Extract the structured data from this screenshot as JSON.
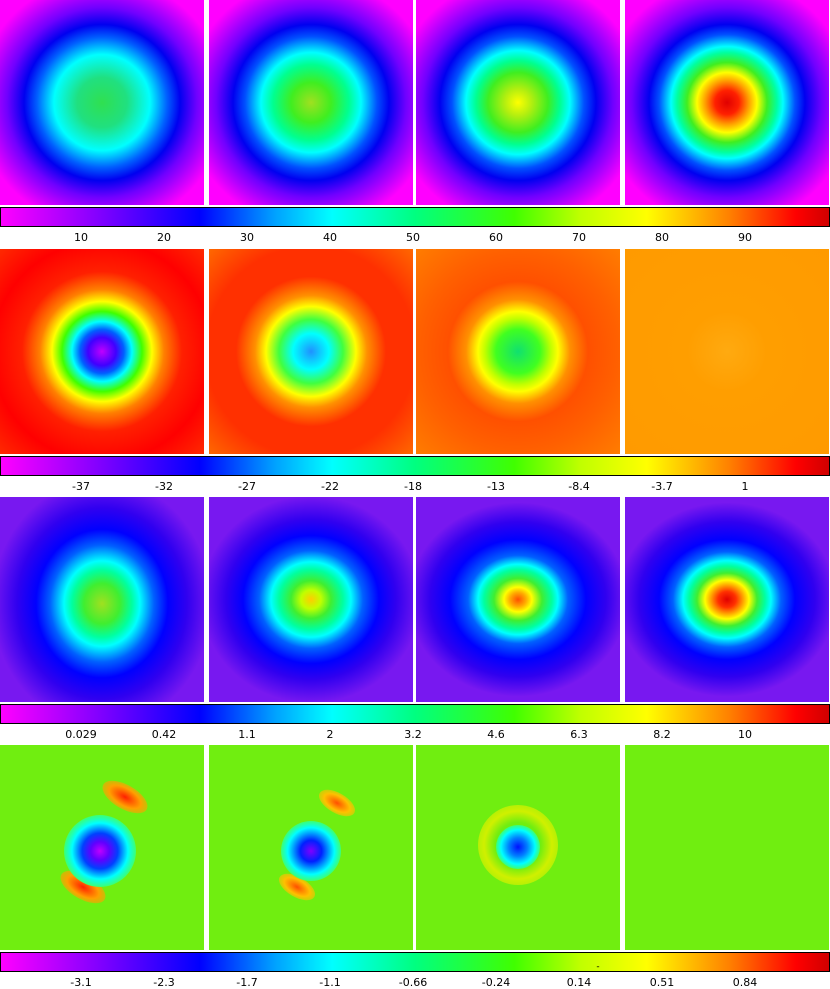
{
  "colorbars": [
    {
      "ticks": [
        "10",
        "20",
        "30",
        "40",
        "50",
        "60",
        "70",
        "80",
        "90"
      ]
    },
    {
      "ticks": [
        "-37",
        "-32",
        "-27",
        "-22",
        "-18",
        "-13",
        "-8.4",
        "-3.7",
        "1"
      ]
    },
    {
      "ticks": [
        "0.029",
        "0.42",
        "1.1",
        "2",
        "3.2",
        "4.6",
        "6.3",
        "8.2",
        "10"
      ]
    },
    {
      "ticks": [
        "-3.1",
        "-2.3",
        "-1.7",
        "-1.1",
        "-0.66",
        "-0.24",
        "0.14",
        "0.51",
        "0.84"
      ],
      "marker": "-"
    }
  ]
}
